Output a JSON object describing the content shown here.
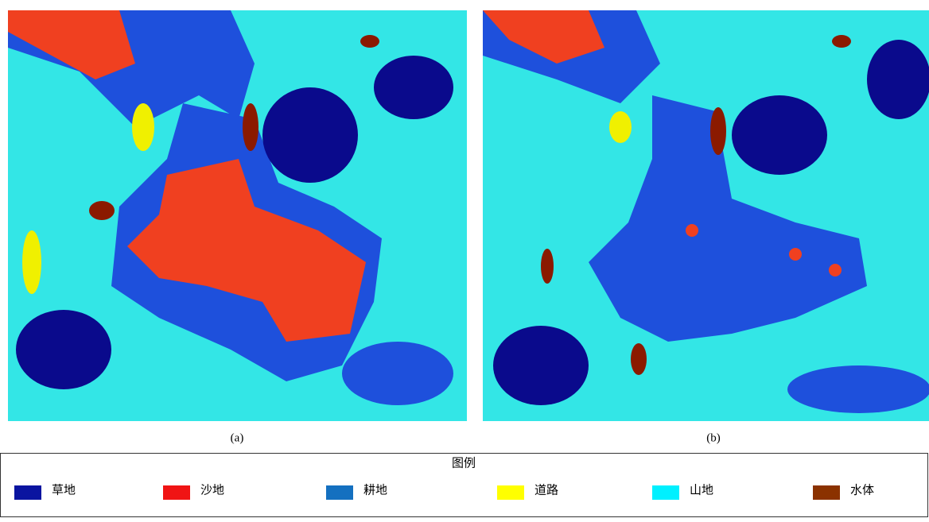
{
  "panels": [
    {
      "label": "(a)"
    },
    {
      "label": "(b)"
    }
  ],
  "legend": {
    "title": "图例",
    "items": [
      {
        "label": "草地",
        "color": "#0a14a0"
      },
      {
        "label": "沙地",
        "color": "#f01414"
      },
      {
        "label": "耕地",
        "color": "#1470c0"
      },
      {
        "label": "道路",
        "color": "#ffff00"
      },
      {
        "label": "山地",
        "color": "#00f0ff"
      },
      {
        "label": "水体",
        "color": "#8b3200"
      }
    ]
  }
}
